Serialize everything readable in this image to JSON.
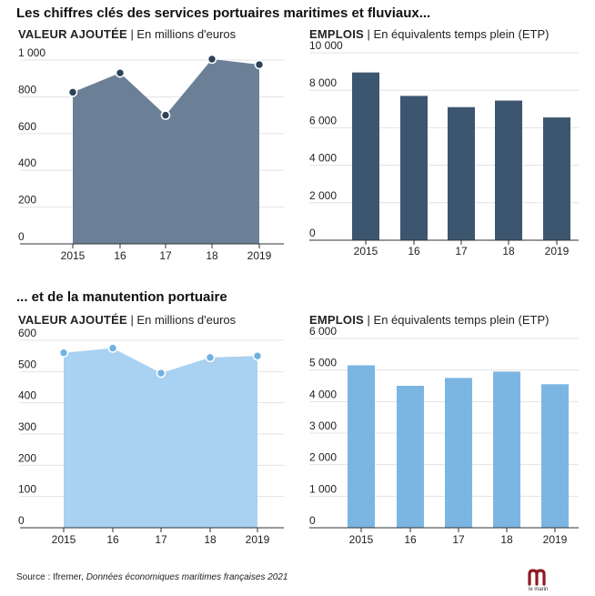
{
  "section1_title": "Les chiffres clés des services portuaires maritimes et fluviaux...",
  "section2_title": "... et de la manutention portuaire",
  "source": {
    "prefix": "Source : Ifremer, ",
    "work": "Données économiques maritimes françaises 2021"
  },
  "logo_text": "le marin",
  "chart_data": [
    {
      "id": "maritime-valeur",
      "type": "area",
      "title_bold": "VALEUR AJOUTÉE",
      "title_rest": " | En millions d'euros",
      "categories": [
        "2015",
        "16",
        "17",
        "18",
        "2019"
      ],
      "values": [
        825,
        930,
        700,
        1005,
        975
      ],
      "yticks": [
        0,
        200,
        400,
        600,
        800,
        1000
      ],
      "yticklabels": [
        "0",
        "200",
        "400",
        "600",
        "800",
        "1 000"
      ],
      "ylim": [
        0,
        1050
      ],
      "color": "#6b8096",
      "marker_color": "#2e4156",
      "grid": true
    },
    {
      "id": "maritime-emplois",
      "type": "bar",
      "title_bold": "EMPLOIS",
      "title_rest": " | En équivalents temps plein (ETP)",
      "categories": [
        "2015",
        "16",
        "17",
        "18",
        "2019"
      ],
      "values": [
        8950,
        7700,
        7100,
        7450,
        6550
      ],
      "yticks": [
        0,
        2000,
        4000,
        6000,
        8000,
        10000
      ],
      "yticklabels": [
        "0",
        "2 000",
        "4 000",
        "6 000",
        "8 000",
        "10 000"
      ],
      "ylim": [
        0,
        10000
      ],
      "color": "#3d5670",
      "grid": true
    },
    {
      "id": "manutention-valeur",
      "type": "area",
      "title_bold": "VALEUR AJOUTÉE",
      "title_rest": " | En millions d'euros",
      "categories": [
        "2015",
        "16",
        "17",
        "18",
        "2019"
      ],
      "values": [
        560,
        575,
        495,
        545,
        550
      ],
      "yticks": [
        0,
        100,
        200,
        300,
        400,
        500,
        600
      ],
      "yticklabels": [
        "0",
        "100",
        "200",
        "300",
        "400",
        "500",
        "600"
      ],
      "ylim": [
        0,
        620
      ],
      "color": "#a9d1f1",
      "marker_color": "#6fb2e3",
      "grid": true
    },
    {
      "id": "manutention-emplois",
      "type": "bar",
      "title_bold": "EMPLOIS",
      "title_rest": " | En équivalents temps plein (ETP)",
      "categories": [
        "2015",
        "16",
        "17",
        "18",
        "2019"
      ],
      "values": [
        5150,
        4500,
        4750,
        4950,
        4550
      ],
      "yticks": [
        0,
        1000,
        2000,
        3000,
        4000,
        5000,
        6000
      ],
      "yticklabels": [
        "0",
        "1 000",
        "2 000",
        "3 000",
        "4 000",
        "5 000",
        "6 000"
      ],
      "ylim": [
        0,
        6000
      ],
      "color": "#7bb6e3",
      "grid": true
    }
  ]
}
